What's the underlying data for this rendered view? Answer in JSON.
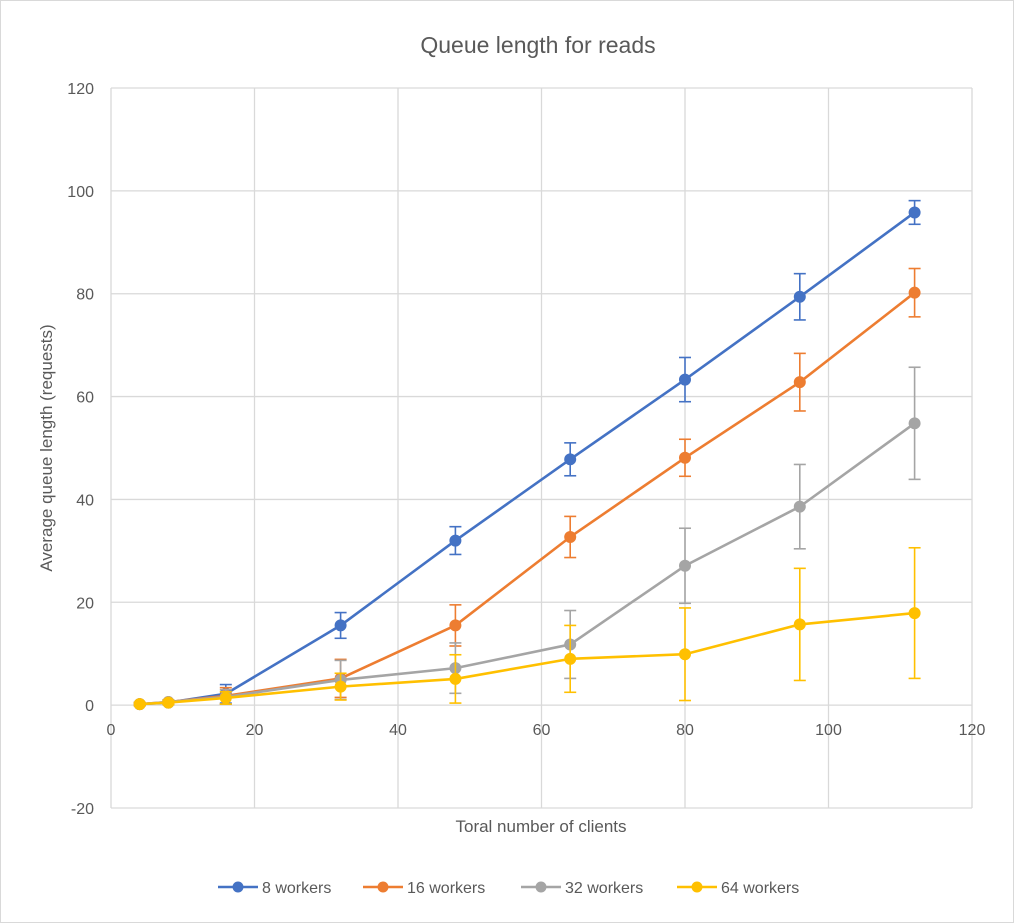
{
  "chart_data": {
    "type": "line",
    "title": "Queue length for reads",
    "xlabel": "Toral number of clients",
    "ylabel": "Average queue length (requests)",
    "xlim": [
      0,
      120
    ],
    "ylim": [
      -20,
      120
    ],
    "x_ticks": [
      0,
      20,
      40,
      60,
      80,
      100,
      120
    ],
    "y_ticks": [
      -20,
      0,
      20,
      40,
      60,
      80,
      100,
      120
    ],
    "grid": true,
    "legend_position": "bottom",
    "x": [
      4,
      8,
      16,
      32,
      48,
      64,
      80,
      96,
      112
    ],
    "series": [
      {
        "name": "8 workers",
        "color": "#4472C4",
        "values": [
          0.2,
          0.5,
          2.2,
          15.5,
          32,
          47.8,
          63.3,
          79.4,
          95.8
        ],
        "error": [
          0.3,
          0.4,
          1.8,
          2.5,
          2.7,
          3.2,
          4.3,
          4.5,
          2.3
        ]
      },
      {
        "name": "16 workers",
        "color": "#ED7D31",
        "values": [
          0.2,
          0.6,
          1.8,
          5.2,
          15.5,
          32.7,
          48.1,
          62.8,
          80.2
        ],
        "error": [
          0.3,
          0.4,
          1.6,
          3.7,
          4.0,
          4.0,
          3.6,
          5.6,
          4.7
        ]
      },
      {
        "name": "32 workers",
        "color": "#A5A5A5",
        "values": [
          0.2,
          0.6,
          1.6,
          4.9,
          7.2,
          11.8,
          27.1,
          38.6,
          54.8
        ],
        "error": [
          0.3,
          0.4,
          1.4,
          3.8,
          4.9,
          6.6,
          7.3,
          8.2,
          10.9
        ]
      },
      {
        "name": "64 workers",
        "color": "#FFC000",
        "values": [
          0.2,
          0.5,
          1.4,
          3.6,
          5.1,
          9.0,
          9.9,
          15.7,
          17.9
        ],
        "error": [
          0.3,
          0.4,
          1.2,
          2.6,
          4.7,
          6.5,
          9.0,
          10.9,
          12.7
        ]
      }
    ]
  }
}
